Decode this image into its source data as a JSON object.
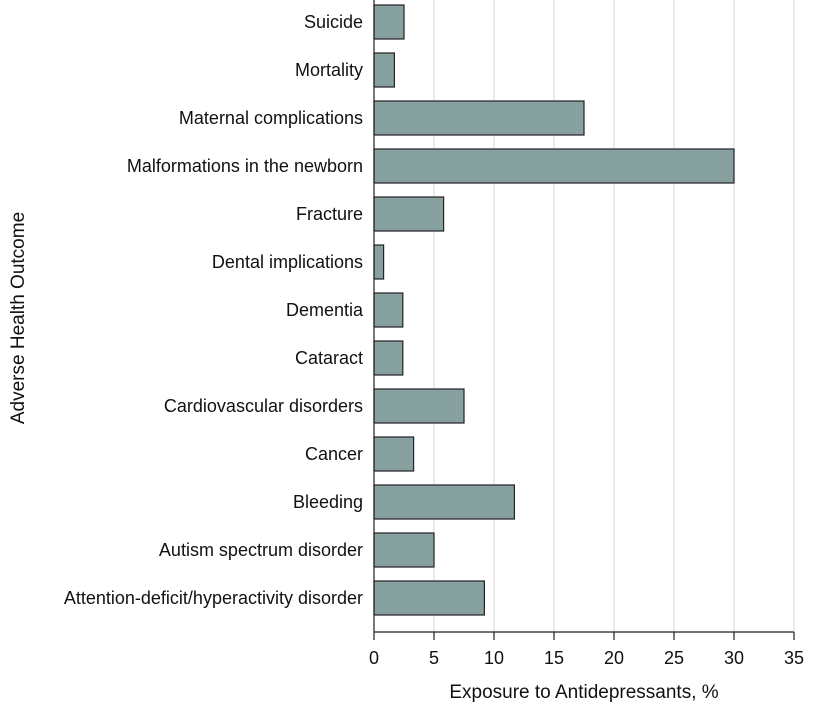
{
  "chart_data": {
    "type": "bar",
    "orientation": "horizontal",
    "title": "",
    "xlabel": "Exposure to Antidepressants, %",
    "ylabel": "Adverse Health Outcome",
    "xlim": [
      0,
      35
    ],
    "xticks": [
      0,
      5,
      10,
      15,
      20,
      25,
      30,
      35
    ],
    "grid": "vertical",
    "bar_color": "#87a0a0",
    "categories": [
      "Suicide",
      "Mortality",
      "Maternal complications",
      "Malformations in the newborn",
      "Fracture",
      "Dental implications",
      "Dementia",
      "Cataract",
      "Cardiovascular disorders",
      "Cancer",
      "Bleeding",
      "Autism spectrum disorder",
      "Attention-deficit/hyperactivity disorder"
    ],
    "values": [
      2.5,
      1.7,
      17.5,
      30.0,
      5.8,
      0.8,
      2.4,
      2.4,
      7.5,
      3.3,
      11.7,
      5.0,
      9.2
    ]
  }
}
